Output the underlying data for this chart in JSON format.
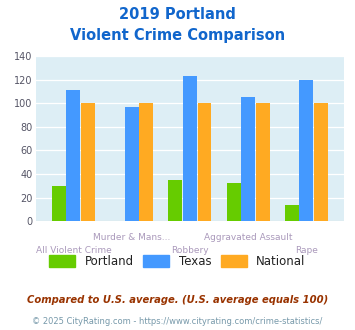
{
  "title_line1": "2019 Portland",
  "title_line2": "Violent Crime Comparison",
  "x_labels_top": [
    "",
    "Murder & Mans...",
    "",
    "Aggravated Assault",
    ""
  ],
  "x_labels_bottom": [
    "All Violent Crime",
    "",
    "Robbery",
    "",
    "Rape"
  ],
  "portland_values": [
    30,
    0,
    35,
    32,
    14
  ],
  "texas_values": [
    111,
    97,
    123,
    105,
    120
  ],
  "national_values": [
    100,
    100,
    100,
    100,
    100
  ],
  "portland_color": "#66cc00",
  "texas_color": "#4499ff",
  "national_color": "#ffaa22",
  "ylim": [
    0,
    140
  ],
  "yticks": [
    0,
    20,
    40,
    60,
    80,
    100,
    120,
    140
  ],
  "title_color": "#1166cc",
  "axis_label_color": "#aa99bb",
  "plot_bg_color": "#ddeef5",
  "legend_labels": [
    "Portland",
    "Texas",
    "National"
  ],
  "footnote1": "Compared to U.S. average. (U.S. average equals 100)",
  "footnote2": "© 2025 CityRating.com - https://www.cityrating.com/crime-statistics/",
  "footnote1_color": "#993300",
  "footnote2_color": "#7799aa"
}
